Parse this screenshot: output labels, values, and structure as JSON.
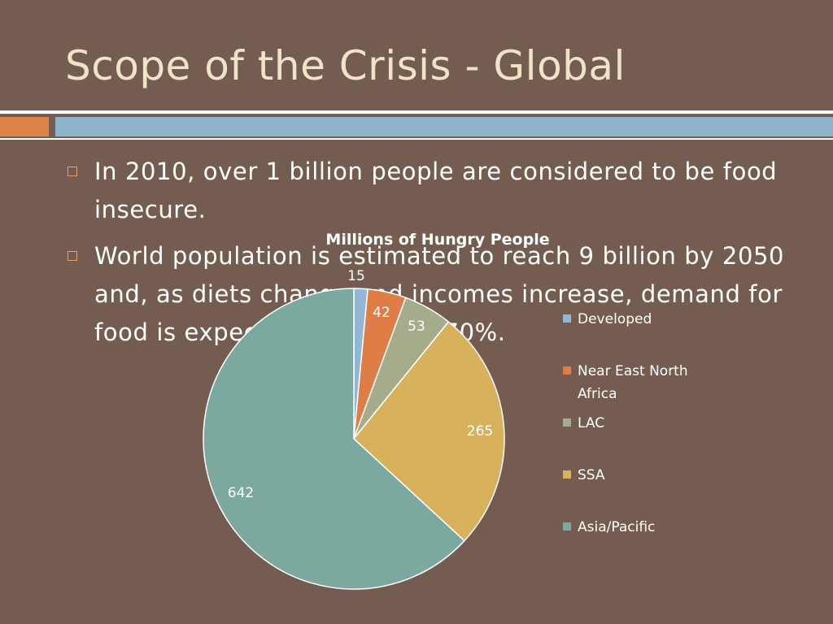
{
  "slide": {
    "title": "Scope of the Crisis - Global",
    "bullets": [
      "In 2010, over 1 billion people are considered to be food insecure.",
      "World population is estimated to reach 9 billion by 2050 and, as diets change and incomes increase, demand for food is expected to grow by 70%."
    ]
  },
  "colors": {
    "background": "#745d50",
    "title": "#efe3c8",
    "accent_orange": "#de8448",
    "accent_blue": "#8eb4cc"
  },
  "chart_data": {
    "type": "pie",
    "title": "Millions of Hungry People",
    "legend_position": "right",
    "slices": [
      {
        "label": "Developed",
        "value": 15,
        "color": "#93b6d4"
      },
      {
        "label": "Near East North Africa",
        "value": 42,
        "color": "#de7e46"
      },
      {
        "label": "LAC",
        "value": 53,
        "color": "#a4ac8c"
      },
      {
        "label": "SSA",
        "value": 265,
        "color": "#d7b15c"
      },
      {
        "label": "Asia/Pacific",
        "value": 642,
        "color": "#7ba89f"
      }
    ]
  }
}
